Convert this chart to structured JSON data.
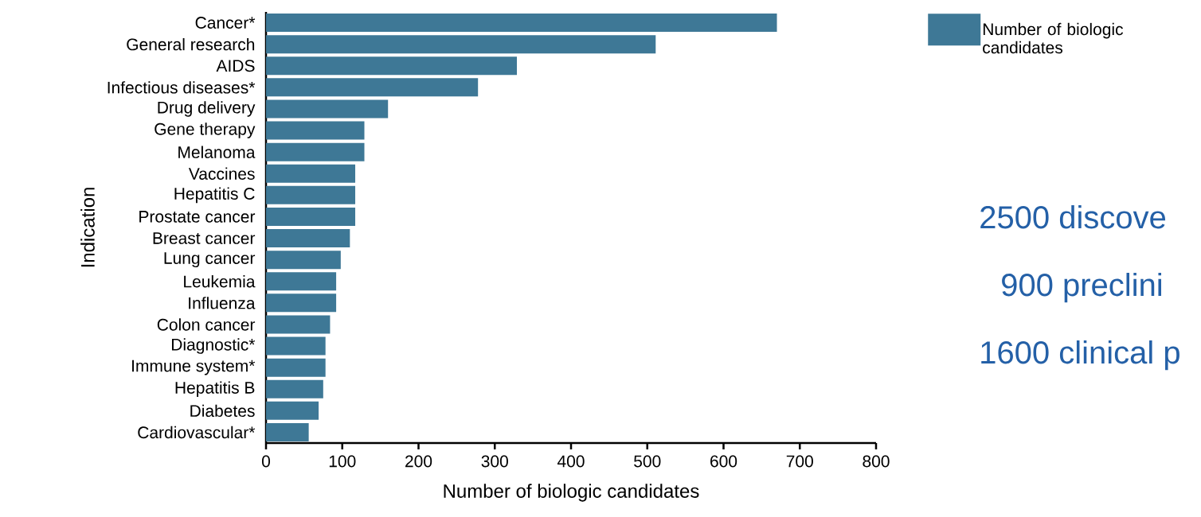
{
  "chart_data": {
    "type": "bar",
    "orientation": "horizontal",
    "xlabel": "Number of biologic candidates",
    "ylabel": "Indication",
    "categories": [
      "Cancer*",
      "General research",
      "AIDS",
      "Infectious diseases*",
      "Drug delivery",
      "Gene therapy",
      "Melanoma",
      "Vaccines",
      "Hepatitis C",
      "Prostate cancer",
      "Breast cancer",
      "Lung cancer",
      "Leukemia",
      "Influenza",
      "Colon cancer",
      "Diagnostic*",
      "Immune system*",
      "Hepatitis B",
      "Diabetes",
      "Cardiovascular*"
    ],
    "series": [
      {
        "name": "Number of biologic candidates",
        "color": "#3e7896",
        "values": [
          670,
          511,
          329,
          278,
          160,
          129,
          129,
          117,
          117,
          117,
          110,
          98,
          92,
          92,
          84,
          78,
          78,
          75,
          69,
          56
        ]
      }
    ],
    "xlim": [
      0,
      800
    ],
    "xticks": [
      0,
      100,
      200,
      300,
      400,
      500,
      600,
      700,
      800
    ],
    "legend": "top right",
    "annotations": [
      "2500 discove",
      "900 preclini",
      "1600 clinical p"
    ]
  }
}
